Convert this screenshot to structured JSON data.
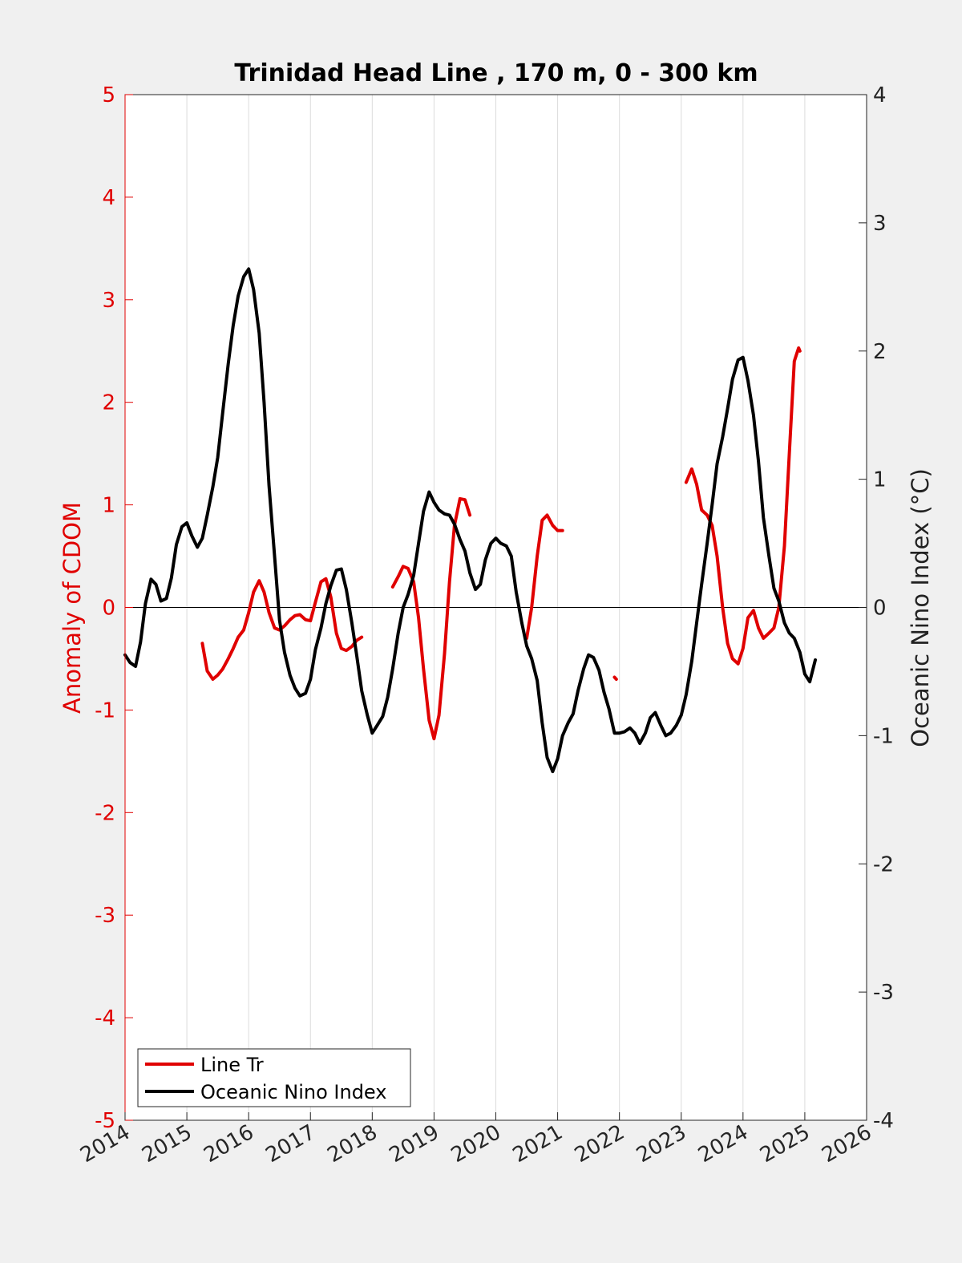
{
  "chart_data": {
    "type": "line",
    "title": "Trinidad Head Line , 170 m, 0 - 300 km",
    "xlabel": "",
    "ylabel_left": "Anomaly of CDOM",
    "ylabel_right": "Oceanic Nino Index (°C)",
    "xlim": [
      2014,
      2026
    ],
    "ylim_left": [
      -5,
      5
    ],
    "ylim_right": [
      -4,
      4
    ],
    "x_ticks": [
      2014,
      2015,
      2016,
      2017,
      2018,
      2019,
      2020,
      2021,
      2022,
      2023,
      2024,
      2025,
      2026
    ],
    "x_tick_labels": [
      "2014",
      "2015",
      "2016",
      "2017",
      "2018",
      "2019",
      "2020",
      "2021",
      "2022",
      "2023",
      "2024",
      "2025",
      "2026"
    ],
    "y_ticks_left": [
      -5,
      -4,
      -3,
      -2,
      -1,
      0,
      1,
      2,
      3,
      4,
      5
    ],
    "y_tick_labels_left": [
      "-5",
      "-4",
      "-3",
      "-2",
      "-1",
      "0",
      "1",
      "2",
      "3",
      "4",
      "5"
    ],
    "y_ticks_right": [
      -4,
      -3,
      -2,
      -1,
      0,
      1,
      2,
      3,
      4
    ],
    "y_tick_labels_right": [
      "-4",
      "-3",
      "-2",
      "-1",
      "0",
      "1",
      "2",
      "3",
      "4"
    ],
    "grid": "vertical",
    "legend_position": "bottom-left",
    "colors": {
      "line_tr": "#e00000",
      "oni": "#000000",
      "left_axis": "#e00000",
      "right_axis": "#222222"
    },
    "series": [
      {
        "name": "Line Tr",
        "axis": "left",
        "segments": [
          [
            [
              2015.25,
              -0.35
            ],
            [
              2015.33,
              -0.62
            ],
            [
              2015.42,
              -0.7
            ],
            [
              2015.5,
              -0.66
            ],
            [
              2015.58,
              -0.6
            ],
            [
              2015.67,
              -0.5
            ],
            [
              2015.75,
              -0.4
            ],
            [
              2015.83,
              -0.29
            ],
            [
              2015.92,
              -0.22
            ],
            [
              2016.0,
              -0.05
            ],
            [
              2016.08,
              0.15
            ],
            [
              2016.17,
              0.26
            ],
            [
              2016.25,
              0.15
            ],
            [
              2016.33,
              -0.05
            ],
            [
              2016.42,
              -0.2
            ],
            [
              2016.5,
              -0.22
            ],
            [
              2016.58,
              -0.18
            ],
            [
              2016.67,
              -0.12
            ],
            [
              2016.75,
              -0.08
            ],
            [
              2016.83,
              -0.07
            ],
            [
              2016.92,
              -0.12
            ],
            [
              2017.0,
              -0.13
            ],
            [
              2017.08,
              0.05
            ],
            [
              2017.17,
              0.25
            ],
            [
              2017.25,
              0.28
            ],
            [
              2017.33,
              0.1
            ],
            [
              2017.42,
              -0.25
            ],
            [
              2017.5,
              -0.4
            ],
            [
              2017.58,
              -0.42
            ],
            [
              2017.67,
              -0.38
            ],
            [
              2017.75,
              -0.32
            ],
            [
              2017.83,
              -0.29
            ]
          ],
          [
            [
              2018.33,
              0.2
            ],
            [
              2018.42,
              0.3
            ],
            [
              2018.5,
              0.4
            ],
            [
              2018.58,
              0.38
            ],
            [
              2018.67,
              0.25
            ],
            [
              2018.75,
              -0.1
            ],
            [
              2018.83,
              -0.6
            ],
            [
              2018.92,
              -1.1
            ],
            [
              2019.0,
              -1.28
            ],
            [
              2019.08,
              -1.05
            ],
            [
              2019.17,
              -0.45
            ],
            [
              2019.25,
              0.25
            ],
            [
              2019.33,
              0.8
            ],
            [
              2019.42,
              1.06
            ],
            [
              2019.5,
              1.05
            ],
            [
              2019.58,
              0.9
            ]
          ],
          [
            [
              2020.5,
              -0.3
            ],
            [
              2020.58,
              0.0
            ],
            [
              2020.67,
              0.5
            ],
            [
              2020.75,
              0.85
            ],
            [
              2020.83,
              0.9
            ],
            [
              2020.92,
              0.8
            ],
            [
              2021.0,
              0.75
            ],
            [
              2021.08,
              0.75
            ]
          ],
          [
            [
              2021.92,
              -0.68
            ],
            [
              2021.95,
              -0.7
            ]
          ],
          [
            [
              2023.08,
              1.22
            ],
            [
              2023.17,
              1.35
            ],
            [
              2023.25,
              1.2
            ],
            [
              2023.33,
              0.95
            ],
            [
              2023.42,
              0.9
            ],
            [
              2023.5,
              0.8
            ],
            [
              2023.58,
              0.5
            ],
            [
              2023.67,
              0.0
            ],
            [
              2023.75,
              -0.35
            ],
            [
              2023.83,
              -0.5
            ],
            [
              2023.92,
              -0.55
            ],
            [
              2024.0,
              -0.4
            ],
            [
              2024.08,
              -0.1
            ],
            [
              2024.17,
              -0.03
            ],
            [
              2024.25,
              -0.2
            ],
            [
              2024.33,
              -0.3
            ],
            [
              2024.42,
              -0.25
            ],
            [
              2024.5,
              -0.2
            ],
            [
              2024.58,
              0.0
            ],
            [
              2024.67,
              0.6
            ],
            [
              2024.75,
              1.5
            ],
            [
              2024.83,
              2.4
            ],
            [
              2024.9,
              2.53
            ],
            [
              2024.92,
              2.5
            ]
          ]
        ]
      },
      {
        "name": "Oceanic Nino Index",
        "axis": "right",
        "segments": [
          [
            [
              2014.0,
              -0.37
            ],
            [
              2014.08,
              -0.43
            ],
            [
              2014.17,
              -0.46
            ],
            [
              2014.25,
              -0.27
            ],
            [
              2014.33,
              0.03
            ],
            [
              2014.42,
              0.22
            ],
            [
              2014.5,
              0.18
            ],
            [
              2014.58,
              0.05
            ],
            [
              2014.67,
              0.07
            ],
            [
              2014.75,
              0.23
            ],
            [
              2014.83,
              0.49
            ],
            [
              2014.92,
              0.63
            ],
            [
              2015.0,
              0.66
            ],
            [
              2015.08,
              0.56
            ],
            [
              2015.17,
              0.47
            ],
            [
              2015.25,
              0.54
            ],
            [
              2015.33,
              0.72
            ],
            [
              2015.42,
              0.94
            ],
            [
              2015.5,
              1.17
            ],
            [
              2015.58,
              1.52
            ],
            [
              2015.67,
              1.9
            ],
            [
              2015.75,
              2.2
            ],
            [
              2015.83,
              2.43
            ],
            [
              2015.92,
              2.58
            ],
            [
              2016.0,
              2.64
            ],
            [
              2016.08,
              2.48
            ],
            [
              2016.17,
              2.14
            ],
            [
              2016.25,
              1.6
            ],
            [
              2016.33,
              0.95
            ],
            [
              2016.42,
              0.4
            ],
            [
              2016.5,
              -0.1
            ],
            [
              2016.58,
              -0.35
            ],
            [
              2016.67,
              -0.53
            ],
            [
              2016.75,
              -0.63
            ],
            [
              2016.83,
              -0.69
            ],
            [
              2016.92,
              -0.67
            ],
            [
              2017.0,
              -0.56
            ],
            [
              2017.08,
              -0.33
            ],
            [
              2017.17,
              -0.16
            ],
            [
              2017.25,
              0.03
            ],
            [
              2017.33,
              0.17
            ],
            [
              2017.42,
              0.29
            ],
            [
              2017.5,
              0.3
            ],
            [
              2017.58,
              0.14
            ],
            [
              2017.67,
              -0.12
            ],
            [
              2017.75,
              -0.38
            ],
            [
              2017.83,
              -0.65
            ],
            [
              2017.92,
              -0.84
            ],
            [
              2018.0,
              -0.98
            ],
            [
              2018.08,
              -0.92
            ],
            [
              2018.17,
              -0.85
            ],
            [
              2018.25,
              -0.7
            ],
            [
              2018.33,
              -0.48
            ],
            [
              2018.42,
              -0.2
            ],
            [
              2018.5,
              0.0
            ],
            [
              2018.58,
              0.1
            ],
            [
              2018.67,
              0.25
            ],
            [
              2018.75,
              0.5
            ],
            [
              2018.83,
              0.75
            ],
            [
              2018.92,
              0.9
            ],
            [
              2019.0,
              0.82
            ],
            [
              2019.08,
              0.76
            ],
            [
              2019.17,
              0.73
            ],
            [
              2019.25,
              0.72
            ],
            [
              2019.33,
              0.65
            ],
            [
              2019.42,
              0.53
            ],
            [
              2019.5,
              0.44
            ],
            [
              2019.58,
              0.27
            ],
            [
              2019.67,
              0.14
            ],
            [
              2019.75,
              0.18
            ],
            [
              2019.83,
              0.37
            ],
            [
              2019.92,
              0.5
            ],
            [
              2020.0,
              0.54
            ],
            [
              2020.08,
              0.5
            ],
            [
              2020.17,
              0.48
            ],
            [
              2020.25,
              0.4
            ],
            [
              2020.33,
              0.12
            ],
            [
              2020.42,
              -0.12
            ],
            [
              2020.5,
              -0.3
            ],
            [
              2020.58,
              -0.4
            ],
            [
              2020.67,
              -0.57
            ],
            [
              2020.75,
              -0.9
            ],
            [
              2020.83,
              -1.17
            ],
            [
              2020.92,
              -1.28
            ],
            [
              2021.0,
              -1.18
            ],
            [
              2021.08,
              -1.0
            ],
            [
              2021.17,
              -0.9
            ],
            [
              2021.25,
              -0.83
            ],
            [
              2021.33,
              -0.65
            ],
            [
              2021.42,
              -0.48
            ],
            [
              2021.5,
              -0.37
            ],
            [
              2021.58,
              -0.39
            ],
            [
              2021.67,
              -0.49
            ],
            [
              2021.75,
              -0.66
            ],
            [
              2021.83,
              -0.79
            ],
            [
              2021.92,
              -0.98
            ],
            [
              2022.0,
              -0.98
            ],
            [
              2022.08,
              -0.97
            ],
            [
              2022.17,
              -0.94
            ],
            [
              2022.25,
              -0.98
            ],
            [
              2022.33,
              -1.06
            ],
            [
              2022.42,
              -0.98
            ],
            [
              2022.5,
              -0.86
            ],
            [
              2022.58,
              -0.82
            ],
            [
              2022.67,
              -0.92
            ],
            [
              2022.75,
              -1.0
            ],
            [
              2022.83,
              -0.98
            ],
            [
              2022.92,
              -0.92
            ],
            [
              2023.0,
              -0.84
            ],
            [
              2023.08,
              -0.68
            ],
            [
              2023.17,
              -0.42
            ],
            [
              2023.25,
              -0.12
            ],
            [
              2023.33,
              0.18
            ],
            [
              2023.42,
              0.5
            ],
            [
              2023.5,
              0.8
            ],
            [
              2023.58,
              1.12
            ],
            [
              2023.67,
              1.33
            ],
            [
              2023.75,
              1.55
            ],
            [
              2023.83,
              1.78
            ],
            [
              2023.92,
              1.93
            ],
            [
              2024.0,
              1.95
            ],
            [
              2024.08,
              1.77
            ],
            [
              2024.17,
              1.5
            ],
            [
              2024.25,
              1.14
            ],
            [
              2024.33,
              0.7
            ],
            [
              2024.42,
              0.4
            ],
            [
              2024.5,
              0.15
            ],
            [
              2024.58,
              0.05
            ],
            [
              2024.67,
              -0.12
            ],
            [
              2024.75,
              -0.2
            ],
            [
              2024.83,
              -0.24
            ],
            [
              2024.92,
              -0.35
            ],
            [
              2025.0,
              -0.52
            ],
            [
              2025.08,
              -0.58
            ],
            [
              2025.17,
              -0.41
            ]
          ]
        ]
      }
    ]
  }
}
